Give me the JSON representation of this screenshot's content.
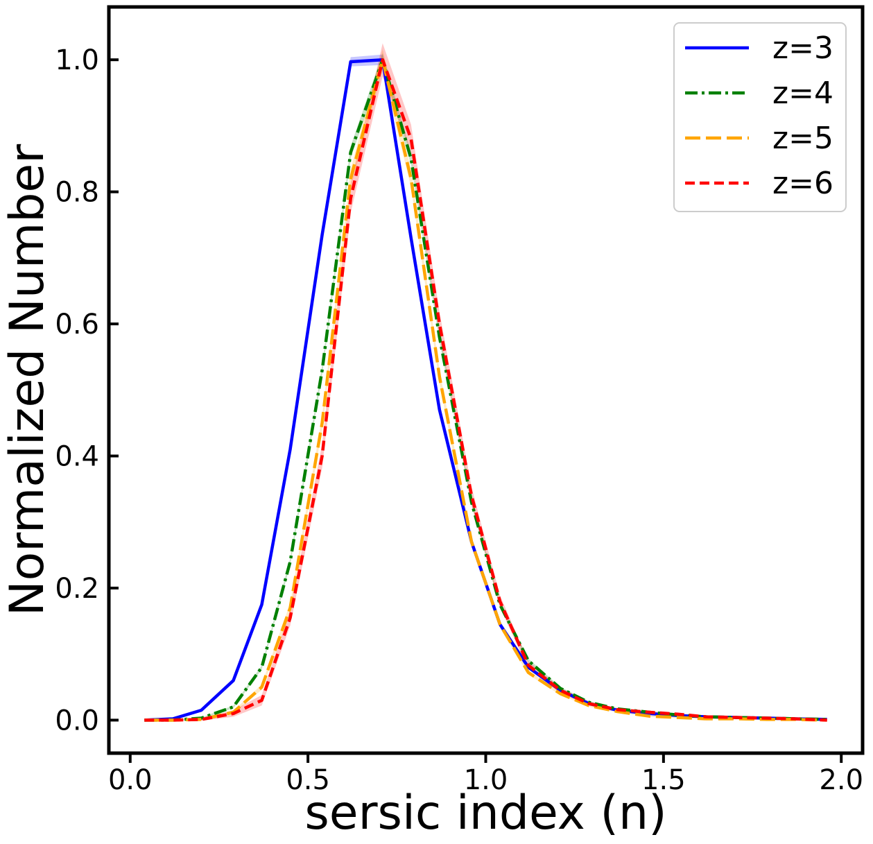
{
  "chart_data": {
    "type": "line",
    "title": "",
    "xlabel": "sersic index (n)",
    "ylabel": "Normalized Number",
    "xlim": [
      -0.06,
      2.06
    ],
    "ylim": [
      -0.05,
      1.08
    ],
    "xticks": [
      0.0,
      0.5,
      1.0,
      1.5,
      2.0
    ],
    "xtick_labels": [
      "0.0",
      "0.5",
      "1.0",
      "1.5",
      "2.0"
    ],
    "yticks": [
      0.0,
      0.2,
      0.4,
      0.6,
      0.8,
      1.0
    ],
    "ytick_labels": [
      "0.0",
      "0.2",
      "0.4",
      "0.6",
      "0.8",
      "1.0"
    ],
    "legend_position": "top-right",
    "grid": false,
    "x": [
      0.04,
      0.12,
      0.2,
      0.29,
      0.37,
      0.45,
      0.54,
      0.62,
      0.71,
      0.79,
      0.87,
      0.96,
      1.04,
      1.12,
      1.21,
      1.29,
      1.37,
      1.46,
      1.54,
      1.62,
      1.71,
      1.79,
      1.87,
      1.96
    ],
    "series": [
      {
        "name": "z=3",
        "color": "#0000ff",
        "dash": "solid",
        "values": [
          0.0,
          0.002,
          0.015,
          0.06,
          0.175,
          0.41,
          0.735,
          0.997,
          1.0,
          0.73,
          0.47,
          0.27,
          0.145,
          0.08,
          0.045,
          0.025,
          0.015,
          0.01,
          0.007,
          0.005,
          0.004,
          0.003,
          0.002,
          0.001
        ],
        "band": [
          0.0,
          0.001,
          0.002,
          0.003,
          0.004,
          0.005,
          0.006,
          0.007,
          0.008,
          0.006,
          0.005,
          0.004,
          0.003,
          0.002,
          0.002,
          0.001,
          0.001,
          0.001,
          0.001,
          0.0,
          0.0,
          0.0,
          0.0,
          0.0
        ]
      },
      {
        "name": "z=4",
        "color": "#008000",
        "dash": "dashdot",
        "values": [
          0.0,
          0.0,
          0.003,
          0.02,
          0.08,
          0.24,
          0.53,
          0.86,
          1.0,
          0.85,
          0.58,
          0.33,
          0.175,
          0.09,
          0.048,
          0.027,
          0.017,
          0.012,
          0.008,
          0.005,
          0.004,
          0.003,
          0.002,
          0.001
        ],
        "band": [
          0.0,
          0.0,
          0.001,
          0.002,
          0.003,
          0.005,
          0.007,
          0.009,
          0.01,
          0.009,
          0.007,
          0.005,
          0.004,
          0.003,
          0.002,
          0.002,
          0.001,
          0.001,
          0.001,
          0.0,
          0.0,
          0.0,
          0.0,
          0.0
        ]
      },
      {
        "name": "z=5",
        "color": "#ffa500",
        "dash": "longdash",
        "values": [
          0.0,
          0.0,
          0.001,
          0.012,
          0.05,
          0.17,
          0.45,
          0.82,
          1.0,
          0.82,
          0.52,
          0.27,
          0.145,
          0.072,
          0.04,
          0.022,
          0.013,
          0.006,
          0.004,
          0.002,
          0.002,
          0.001,
          0.001,
          0.0
        ],
        "band": [
          0.0,
          0.0,
          0.001,
          0.002,
          0.004,
          0.007,
          0.01,
          0.014,
          0.016,
          0.013,
          0.01,
          0.007,
          0.005,
          0.003,
          0.002,
          0.002,
          0.001,
          0.001,
          0.001,
          0.0,
          0.0,
          0.0,
          0.0,
          0.0
        ]
      },
      {
        "name": "z=6",
        "color": "#ff0000",
        "dash": "dashed",
        "values": [
          0.0,
          0.0,
          0.001,
          0.01,
          0.03,
          0.155,
          0.4,
          0.79,
          1.0,
          0.88,
          0.6,
          0.34,
          0.18,
          0.083,
          0.045,
          0.025,
          0.016,
          0.012,
          0.009,
          0.005,
          0.004,
          0.003,
          0.002,
          0.0
        ],
        "band": [
          0.0,
          0.0,
          0.002,
          0.005,
          0.008,
          0.012,
          0.018,
          0.022,
          0.025,
          0.022,
          0.018,
          0.013,
          0.009,
          0.006,
          0.004,
          0.003,
          0.002,
          0.002,
          0.001,
          0.001,
          0.001,
          0.0,
          0.0,
          0.0
        ]
      }
    ]
  }
}
